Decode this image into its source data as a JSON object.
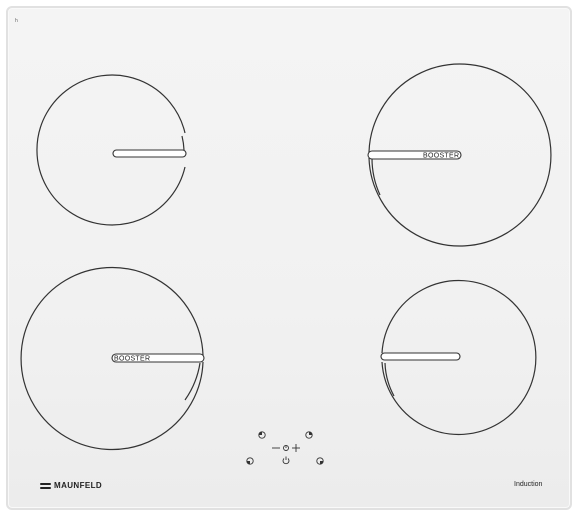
{
  "brand": {
    "name": "MAUNFELD",
    "logo_icon": "maunfeld-logo-icon"
  },
  "hob": {
    "type_label": "Induction",
    "surface_color": "#f2f2f2",
    "line_color": "#333333",
    "corner_mark": "h"
  },
  "zones": [
    {
      "position": "top-left",
      "booster_label": ""
    },
    {
      "position": "top-right",
      "booster_label": "BOOSTER"
    },
    {
      "position": "bottom-left",
      "booster_label": "BOOSTER"
    },
    {
      "position": "bottom-right",
      "booster_label": ""
    }
  ],
  "controls": {
    "minus_icon": "minus-icon",
    "plus_icon": "plus-icon",
    "timer_icon": "timer-icon",
    "power_icon": "power-icon",
    "zone_selector_icon": "zone-selector-icon"
  }
}
